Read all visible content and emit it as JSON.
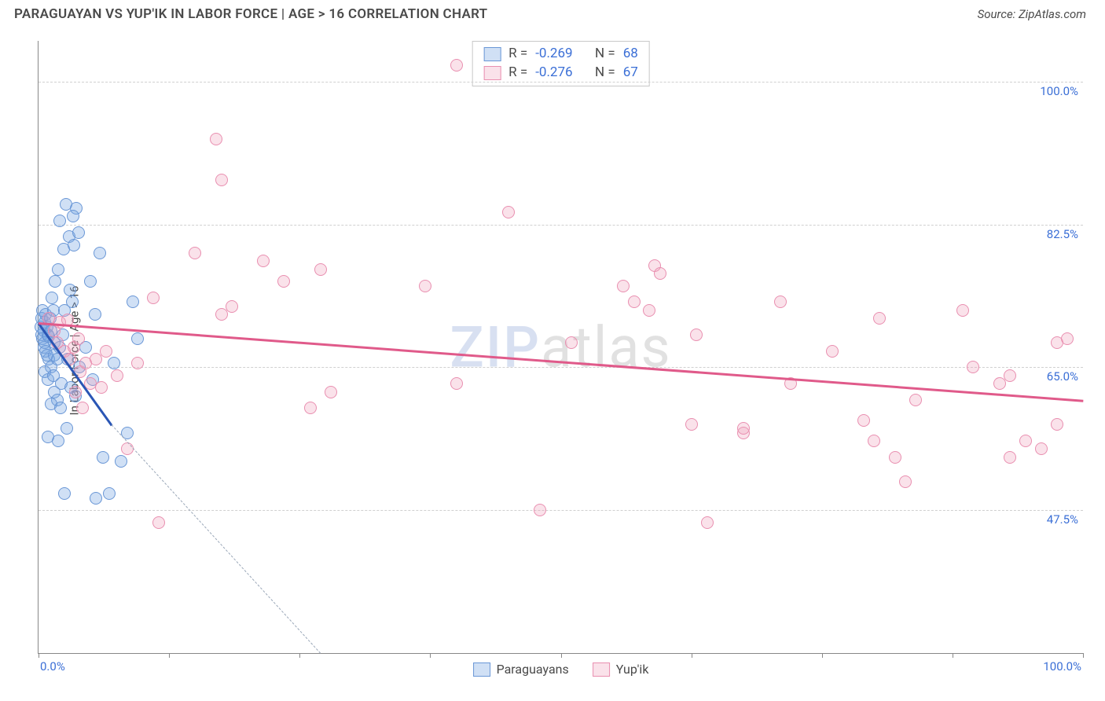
{
  "header": {
    "title": "PARAGUAYAN VS YUP'IK IN LABOR FORCE | AGE > 16 CORRELATION CHART",
    "source_prefix": "Source: ",
    "source_name": "ZipAtlas.com"
  },
  "chart": {
    "type": "scatter",
    "ylabel": "In Labor Force | Age > 16",
    "xlim": [
      0,
      100
    ],
    "ylim": [
      30,
      105
    ],
    "x_origin_label": "0.0%",
    "x_max_label": "100.0%",
    "x_ticks": [
      0,
      12.5,
      25,
      37.5,
      50,
      62.5,
      75,
      87.5,
      100
    ],
    "y_gridlines": [
      47.5,
      65.0,
      82.5,
      100.0
    ],
    "y_tick_labels": [
      "47.5%",
      "65.0%",
      "82.5%",
      "100.0%"
    ],
    "background_color": "#ffffff",
    "grid_color": "#d0d0d0",
    "axis_color": "#888888",
    "tick_label_color": "#3b6fd6",
    "marker_radius": 8,
    "watermark": {
      "z": "ZIP",
      "rest": "atlas"
    },
    "series": [
      {
        "id": "paraguayans",
        "label": "Paraguayans",
        "fill_color": "rgba(120,165,225,0.35)",
        "border_color": "#6a97d6",
        "trend_color": "#2a56b5",
        "R": "-0.269",
        "N": "68",
        "trend": {
          "x1": 0,
          "y1": 70.5,
          "x2": 7,
          "y2": 58,
          "extend_x2": 27,
          "extend_y2": 30
        },
        "points": [
          [
            0.2,
            70
          ],
          [
            0.3,
            69
          ],
          [
            0.4,
            68.5
          ],
          [
            0.5,
            69.5
          ],
          [
            0.3,
            71
          ],
          [
            0.6,
            70.5
          ],
          [
            0.4,
            72
          ],
          [
            0.7,
            71.5
          ],
          [
            0.8,
            70
          ],
          [
            0.5,
            67.5
          ],
          [
            0.6,
            68
          ],
          [
            0.9,
            69
          ],
          [
            1.0,
            68.8
          ],
          [
            0.7,
            67
          ],
          [
            1.2,
            69.5
          ],
          [
            1.1,
            71
          ],
          [
            1.4,
            72
          ],
          [
            1.3,
            73.5
          ],
          [
            1.5,
            68
          ],
          [
            1.0,
            66
          ],
          [
            0.8,
            66.5
          ],
          [
            1.2,
            65
          ],
          [
            1.5,
            66.5
          ],
          [
            0.6,
            64.5
          ],
          [
            0.9,
            63.5
          ],
          [
            1.4,
            64
          ],
          [
            1.8,
            66
          ],
          [
            2.0,
            67.5
          ],
          [
            2.3,
            69
          ],
          [
            2.5,
            72
          ],
          [
            2.2,
            63
          ],
          [
            2.8,
            66
          ],
          [
            3.0,
            74.5
          ],
          [
            3.2,
            73
          ],
          [
            1.6,
            75.5
          ],
          [
            1.9,
            77
          ],
          [
            2.4,
            79.5
          ],
          [
            2.9,
            81
          ],
          [
            3.4,
            80
          ],
          [
            3.8,
            81.5
          ],
          [
            3.6,
            84.5
          ],
          [
            3.3,
            83.5
          ],
          [
            2.0,
            83
          ],
          [
            2.6,
            85
          ],
          [
            1.5,
            62
          ],
          [
            1.8,
            61
          ],
          [
            1.2,
            60.5
          ],
          [
            2.1,
            60
          ],
          [
            3.1,
            62.5
          ],
          [
            3.5,
            61.5
          ],
          [
            2.7,
            57.5
          ],
          [
            1.9,
            56
          ],
          [
            0.9,
            56.5
          ],
          [
            3.9,
            65
          ],
          [
            4.5,
            67.5
          ],
          [
            5.2,
            63.5
          ],
          [
            5.0,
            75.5
          ],
          [
            5.4,
            71.5
          ],
          [
            5.9,
            79
          ],
          [
            6.2,
            54
          ],
          [
            7.2,
            65.5
          ],
          [
            7.9,
            53.5
          ],
          [
            2.5,
            49.5
          ],
          [
            5.5,
            49
          ],
          [
            6.8,
            49.5
          ],
          [
            8.5,
            57
          ],
          [
            9.0,
            73
          ],
          [
            9.5,
            68.5
          ]
        ]
      },
      {
        "id": "yupik",
        "label": "Yup'ik",
        "fill_color": "rgba(240,160,185,0.30)",
        "border_color": "#e98fb0",
        "trend_color": "#e05a8a",
        "R": "-0.276",
        "N": "67",
        "trend": {
          "x1": 0,
          "y1": 70.5,
          "x2": 100,
          "y2": 61
        },
        "points": [
          [
            1.0,
            71
          ],
          [
            1.5,
            69.5
          ],
          [
            2.0,
            70.5
          ],
          [
            1.8,
            68
          ],
          [
            2.5,
            67
          ],
          [
            2.8,
            70.8
          ],
          [
            3.0,
            66
          ],
          [
            3.4,
            67.5
          ],
          [
            3.8,
            68.5
          ],
          [
            4.0,
            64.5
          ],
          [
            4.5,
            65.5
          ],
          [
            5.0,
            63
          ],
          [
            5.5,
            66
          ],
          [
            3.5,
            62
          ],
          [
            4.2,
            60
          ],
          [
            6.0,
            62.5
          ],
          [
            6.5,
            67
          ],
          [
            7.5,
            64
          ],
          [
            8.5,
            55
          ],
          [
            9.5,
            65.5
          ],
          [
            11,
            73.5
          ],
          [
            11.5,
            46
          ],
          [
            15,
            79
          ],
          [
            17.5,
            71.5
          ],
          [
            18.5,
            72.5
          ],
          [
            17,
            93
          ],
          [
            17.5,
            88
          ],
          [
            21.5,
            78
          ],
          [
            23.5,
            75.5
          ],
          [
            26,
            60
          ],
          [
            27,
            77
          ],
          [
            28,
            62
          ],
          [
            37,
            75
          ],
          [
            40,
            63
          ],
          [
            40,
            102
          ],
          [
            45,
            84
          ],
          [
            48,
            47.5
          ],
          [
            51,
            68
          ],
          [
            56,
            75
          ],
          [
            57,
            73
          ],
          [
            58.5,
            72
          ],
          [
            59,
            77.5
          ],
          [
            59.5,
            76.5
          ],
          [
            62.5,
            58
          ],
          [
            63,
            69
          ],
          [
            64,
            46
          ],
          [
            67.5,
            57
          ],
          [
            67.5,
            57.5
          ],
          [
            71,
            73
          ],
          [
            72,
            63
          ],
          [
            76,
            67
          ],
          [
            79,
            58.5
          ],
          [
            80,
            56
          ],
          [
            80.5,
            71
          ],
          [
            82,
            54
          ],
          [
            83,
            51
          ],
          [
            84,
            61
          ],
          [
            88.5,
            72
          ],
          [
            89.5,
            65
          ],
          [
            92,
            63
          ],
          [
            93,
            64
          ],
          [
            93,
            54
          ],
          [
            94.5,
            56
          ],
          [
            96,
            55
          ],
          [
            97.5,
            58
          ],
          [
            97.5,
            68
          ],
          [
            98.5,
            68.5
          ]
        ]
      }
    ],
    "stats_box": {
      "R_label": "R =",
      "N_label": "N ="
    }
  }
}
